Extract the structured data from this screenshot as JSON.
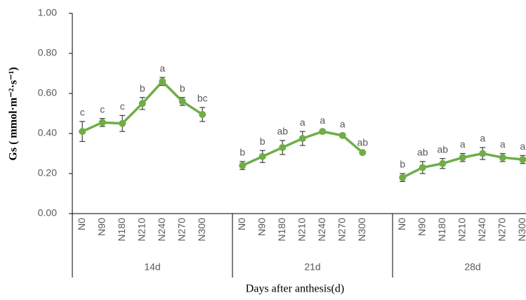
{
  "chart_data": {
    "type": "line",
    "y_label": "Gs ( mmol·m⁻²·s⁻¹)",
    "x_label": "Days after anthesis(d)",
    "categories": [
      "N0",
      "N90",
      "N180",
      "N210",
      "N240",
      "N270",
      "N300",
      null,
      "N0",
      "N90",
      "N180",
      "N210",
      "N240",
      "N270",
      "N300",
      null,
      "N0",
      "N90",
      "N180",
      "N210",
      "N240",
      "N270",
      "N300",
      null
    ],
    "groups": [
      "14d",
      "21d",
      "28d"
    ],
    "series": [
      {
        "color": "#70ad47",
        "values": [
          0.41,
          0.455,
          0.45,
          0.55,
          0.66,
          0.56,
          0.495,
          null,
          0.24,
          0.285,
          0.33,
          0.375,
          0.41,
          0.39,
          0.305,
          null,
          0.18,
          0.23,
          0.25,
          0.28,
          0.3,
          0.28,
          0.27,
          null
        ],
        "errors": [
          0.05,
          0.02,
          0.04,
          0.03,
          0.02,
          0.02,
          0.035,
          null,
          0.02,
          0.03,
          0.035,
          0.035,
          0.01,
          0.01,
          0.005,
          null,
          0.02,
          0.03,
          0.025,
          0.02,
          0.03,
          0.02,
          0.02,
          null
        ],
        "letters": [
          "c",
          "c",
          "c",
          "b",
          "a",
          "b",
          "bc",
          null,
          "b",
          "b",
          "ab",
          "a",
          "a",
          "a",
          "ab",
          null,
          "b",
          "ab",
          "ab",
          "a",
          "a",
          "a",
          "a",
          null
        ]
      }
    ],
    "ylim": [
      0,
      1
    ],
    "yticks": [
      {
        "value": 0,
        "label": "0.00"
      },
      {
        "value": 0.2,
        "label": "0.20"
      },
      {
        "value": 0.4,
        "label": "0.40"
      },
      {
        "value": 0.6,
        "label": "0.60"
      },
      {
        "value": 0.8,
        "label": "0.80"
      },
      {
        "value": 1,
        "label": "1.00"
      }
    ]
  }
}
